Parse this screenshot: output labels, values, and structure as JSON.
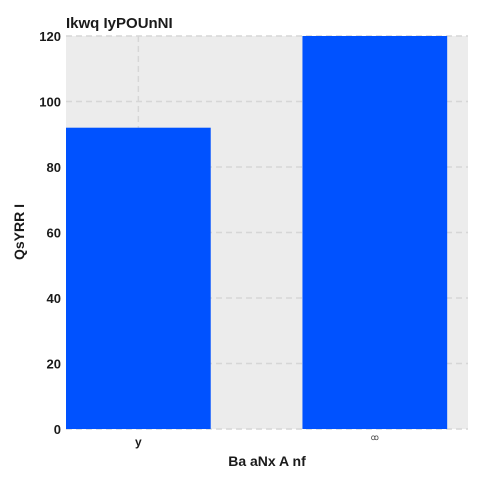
{
  "chart_data": {
    "type": "bar",
    "title": "Ikwq IyPOUnNI",
    "xlabel": "Ba aNx  A nf",
    "ylabel": "QsYRR I",
    "categories": [
      "y",
      "ꝏ"
    ],
    "values": [
      92,
      120
    ],
    "ylim": [
      0,
      120
    ],
    "yticks": [
      0,
      20,
      40,
      60,
      80,
      100,
      120
    ],
    "grid": true,
    "legend": "none",
    "colors": {
      "bar": "#0052ff",
      "plot_background": "#ececec",
      "grid": "#d6d6d6"
    }
  }
}
